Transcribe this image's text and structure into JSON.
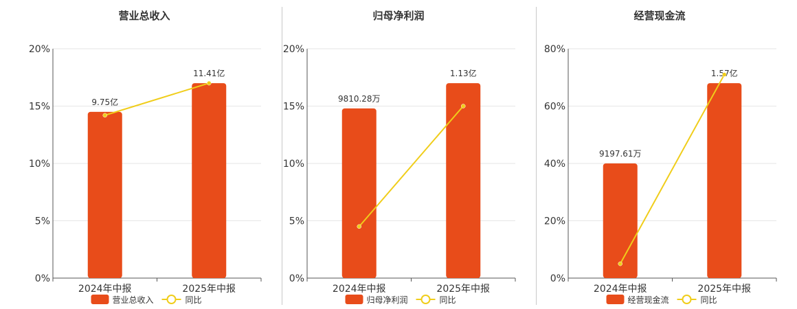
{
  "colors": {
    "bar": "#e84c1a",
    "line": "#f0cd1a",
    "axis": "#555555",
    "grid": "#e6e6e6",
    "text": "#333333"
  },
  "chart_data": [
    {
      "type": "bar",
      "title": "营业总收入",
      "categories": [
        "2024年中报",
        "2025年中报"
      ],
      "bar_series_name": "营业总收入",
      "bar_heights_pct": [
        14.5,
        17.0
      ],
      "bar_labels": [
        "9.75亿",
        "11.41亿"
      ],
      "line_series_name": "同比",
      "line_values_pct": [
        14.2,
        17.0
      ],
      "ylim": [
        0,
        20
      ],
      "yticks": [
        "0%",
        "5%",
        "10%",
        "15%",
        "20%"
      ],
      "ytick_values": [
        0,
        5,
        10,
        15,
        20
      ],
      "grid": true,
      "legend": "bottom"
    },
    {
      "type": "bar",
      "title": "归母净利润",
      "categories": [
        "2024年中报",
        "2025年中报"
      ],
      "bar_series_name": "归母净利润",
      "bar_heights_pct": [
        14.8,
        17.0
      ],
      "bar_labels": [
        "9810.28万",
        "1.13亿"
      ],
      "line_series_name": "同比",
      "line_values_pct": [
        4.5,
        15.0
      ],
      "ylim": [
        0,
        20
      ],
      "yticks": [
        "0%",
        "5%",
        "10%",
        "15%",
        "20%"
      ],
      "ytick_values": [
        0,
        5,
        10,
        15,
        20
      ],
      "grid": true,
      "legend": "bottom"
    },
    {
      "type": "bar",
      "title": "经营现金流",
      "categories": [
        "2024年中报",
        "2025年中报"
      ],
      "bar_series_name": "经营现金流",
      "bar_heights_pct": [
        40.0,
        68.0
      ],
      "bar_labels": [
        "9197.61万",
        "1.57亿"
      ],
      "line_series_name": "同比",
      "line_values_pct": [
        5.0,
        71.0
      ],
      "ylim": [
        0,
        80
      ],
      "yticks": [
        "0%",
        "20%",
        "40%",
        "60%",
        "80%"
      ],
      "ytick_values": [
        0,
        20,
        40,
        60,
        80
      ],
      "grid": true,
      "legend": "bottom"
    }
  ]
}
